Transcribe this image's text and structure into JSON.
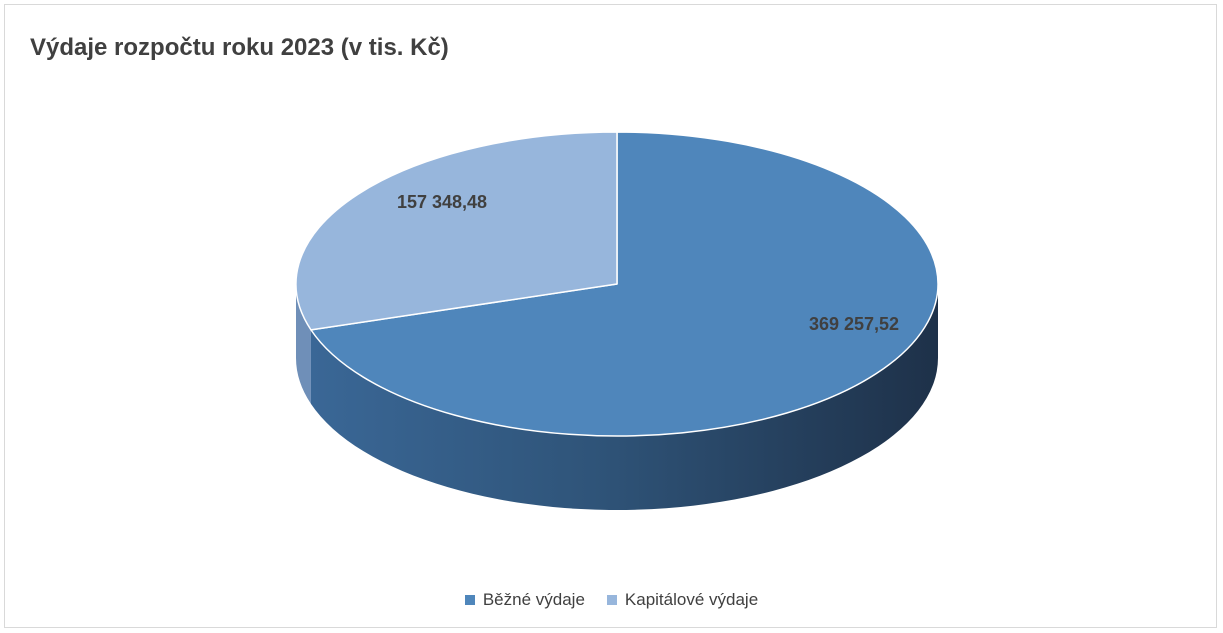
{
  "chart_data": {
    "type": "pie",
    "title": "Výdaje rozpočtu roku 2023 (v tis. Kč)",
    "categories": [
      "Běžné výdaje",
      "Kapitálové výdaje"
    ],
    "values": [
      369257.52,
      157348.48
    ],
    "value_labels": [
      "369 257,52",
      "157 348,48"
    ],
    "colors": [
      "#4f86bb",
      "#97b6dc"
    ],
    "legend": "bottom",
    "style": "3d"
  }
}
